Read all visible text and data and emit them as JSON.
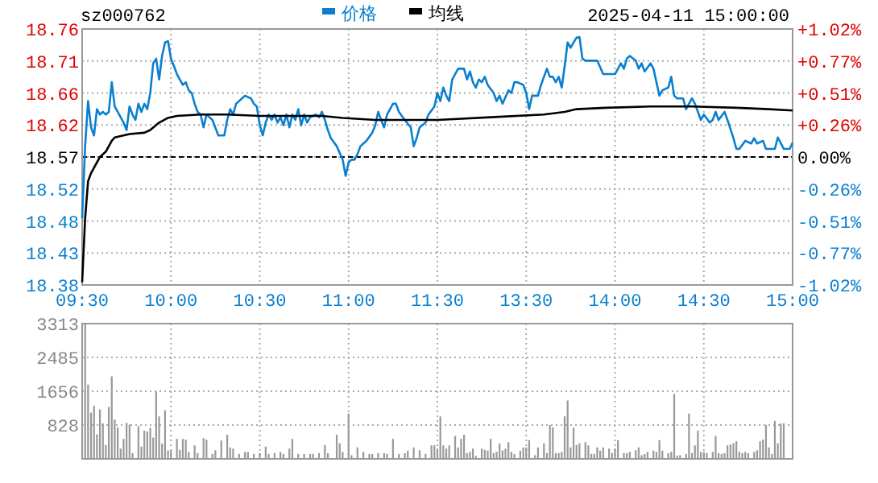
{
  "chart_data": [
    {
      "type": "line",
      "title": "sz000762",
      "annotations": [
        "2025-04-11 15:00:00"
      ],
      "legend": "top",
      "grid": true,
      "categories": [
        "09:30",
        null,
        null,
        null,
        null,
        null,
        null,
        null,
        null,
        null,
        null,
        null,
        null,
        null,
        null,
        null,
        null,
        null,
        null,
        null,
        null,
        null,
        null,
        null,
        null,
        null,
        null,
        null,
        null,
        null,
        "10:00",
        null,
        null,
        null,
        null,
        null,
        null,
        null,
        null,
        null,
        null,
        null,
        null,
        null,
        null,
        null,
        null,
        null,
        null,
        null,
        null,
        null,
        null,
        null,
        null,
        null,
        null,
        null,
        null,
        null,
        "10:30",
        null,
        null,
        null,
        null,
        null,
        null,
        null,
        null,
        null,
        null,
        null,
        null,
        null,
        null,
        null,
        null,
        null,
        null,
        null,
        null,
        null,
        null,
        null,
        null,
        null,
        null,
        null,
        null,
        null,
        "11:00",
        null,
        null,
        null,
        null,
        null,
        null,
        null,
        null,
        null,
        null,
        null,
        null,
        null,
        null,
        null,
        null,
        null,
        null,
        null,
        null,
        null,
        null,
        null,
        null,
        null,
        null,
        null,
        null,
        null,
        "11:30",
        null,
        null,
        null,
        null,
        null,
        null,
        null,
        null,
        null,
        null,
        null,
        null,
        null,
        null,
        null,
        null,
        null,
        null,
        null,
        null,
        null,
        null,
        null,
        null,
        null,
        null,
        null,
        null,
        null,
        "13:30",
        null,
        null,
        null,
        null,
        null,
        null,
        null,
        null,
        null,
        null,
        null,
        null,
        null,
        null,
        null,
        null,
        null,
        null,
        null,
        null,
        null,
        null,
        null,
        null,
        null,
        null,
        null,
        null,
        null,
        "14:00",
        null,
        null,
        null,
        null,
        null,
        null,
        null,
        null,
        null,
        null,
        null,
        null,
        null,
        null,
        null,
        null,
        null,
        null,
        null,
        null,
        null,
        null,
        null,
        null,
        null,
        null,
        null,
        null,
        null,
        "14:30",
        null,
        null,
        null,
        null,
        null,
        null,
        null,
        null,
        null,
        null,
        null,
        null,
        null,
        null,
        null,
        null,
        null,
        null,
        null,
        null,
        null,
        null,
        null,
        null,
        null,
        null,
        null,
        null,
        null,
        "15:00"
      ],
      "ylim": [
        18.38,
        18.76
      ],
      "yticks": [
        {
          "value": 18.38,
          "label": "18.38"
        },
        {
          "value": 18.4275,
          "label": "18.43"
        },
        {
          "value": 18.475,
          "label": "18.48"
        },
        {
          "value": 18.5225,
          "label": "18.52"
        },
        {
          "value": 18.57,
          "label": "18.57"
        },
        {
          "value": 18.6175,
          "label": "18.62"
        },
        {
          "value": 18.665,
          "label": "18.66"
        },
        {
          "value": 18.7125,
          "label": "18.71"
        },
        {
          "value": 18.76,
          "label": "18.76"
        }
      ],
      "y2lim": [
        -1.02,
        1.02
      ],
      "y2ticks": [
        {
          "value": -1.02,
          "label": "-1.02%"
        },
        {
          "value": -0.765,
          "label": "-0.77%"
        },
        {
          "value": -0.51,
          "label": "-0.51%"
        },
        {
          "value": -0.255,
          "label": "-0.26%"
        },
        {
          "value": 0,
          "label": "0.00%"
        },
        {
          "value": 0.255,
          "label": "+0.26%"
        },
        {
          "value": 0.51,
          "label": "+0.51%"
        },
        {
          "value": 0.765,
          "label": "+0.77%"
        },
        {
          "value": 1.02,
          "label": "+1.02%"
        }
      ],
      "ref_lines": [
        {
          "axis": "y",
          "value": 18.57,
          "color": "#000000",
          "line_style": "dashed"
        }
      ],
      "series": [
        {
          "name": "价格",
          "color": "#0a7fd0",
          "values": [
            18.479,
            18.586,
            18.653,
            18.614,
            18.602,
            18.641,
            18.633,
            18.637,
            18.633,
            18.637,
            18.681,
            18.645,
            18.637,
            null,
            18.621,
            18.61,
            18.645,
            18.633,
            18.625,
            18.649,
            18.637,
            18.649,
            18.641,
            18.665,
            18.709,
            18.716,
            18.685,
            18.72,
            18.74,
            18.742,
            18.716,
            18.705,
            18.693,
            18.685,
            18.677,
            18.681,
            18.669,
            18.665,
            18.649,
            18.637,
            18.633,
            18.614,
            18.633,
            null,
            18.625,
            null,
            18.602,
            null,
            18.602,
            18.625,
            18.641,
            18.633,
            18.649,
            null,
            18.657,
            18.661,
            null,
            18.657,
            18.649,
            18.645,
            18.617,
            18.602,
            18.621,
            18.633,
            18.625,
            18.633,
            18.621,
            18.629,
            18.617,
            18.633,
            18.614,
            18.633,
            18.625,
            18.641,
            18.617,
            18.633,
            18.621,
            18.629,
            null,
            18.633,
            18.629,
            18.637,
            18.625,
            18.61,
            18.598,
            null,
            18.586,
            null,
            18.566,
            18.542,
            18.562,
            18.566,
            18.566,
            18.574,
            18.586,
            null,
            18.594,
            null,
            18.606,
            18.617,
            18.637,
            18.625,
            18.614,
            18.633,
            null,
            18.649,
            18.649,
            18.637,
            null,
            18.625,
            null,
            18.614,
            18.586,
            18.598,
            18.614,
            null,
            18.621,
            18.633,
            null,
            18.645,
            18.665,
            18.653,
            18.673,
            18.661,
            18.653,
            18.685,
            null,
            18.701,
            null,
            18.701,
            18.685,
            18.697,
            18.681,
            18.673,
            18.685,
            18.681,
            18.689,
            18.677,
            null,
            18.665,
            18.653,
            18.661,
            18.649,
            null,
            18.669,
            18.665,
            18.681,
            18.681,
            null,
            18.677,
            18.665,
            18.641,
            18.661,
            null,
            18.661,
            18.677,
            null,
            18.701,
            18.689,
            18.689,
            18.681,
            18.689,
            18.673,
            18.705,
            18.74,
            18.732,
            18.74,
            18.747,
            18.748,
            18.716,
            18.713,
            null,
            null,
            null,
            18.713,
            null,
            18.693,
            null,
            null,
            null,
            18.693,
            null,
            18.709,
            18.701,
            18.716,
            18.72,
            null,
            18.713,
            18.701,
            18.709,
            18.697,
            null,
            18.709,
            18.701,
            18.681,
            18.661,
            18.669,
            null,
            18.673,
            18.689,
            18.661,
            18.657,
            null,
            18.657,
            18.641,
            null,
            18.657,
            18.649,
            null,
            18.625,
            18.633,
            null,
            18.621,
            18.625,
            18.637,
            18.625,
            null,
            18.637,
            18.625,
            null,
            18.598,
            18.582,
            18.582,
            null,
            18.594,
            null,
            18.59,
            18.598,
            18.59,
            null,
            18.594,
            18.582,
            null,
            null,
            18.582,
            18.599,
            null,
            18.582,
            null,
            18.582,
            18.591
          ]
        },
        {
          "name": "均线",
          "color": "#000000",
          "values": [
            18.384,
            18.479,
            18.534,
            18.546,
            18.554,
            null,
            18.57,
            null,
            18.578,
            null,
            18.594,
            18.599,
            null,
            null,
            null,
            null,
            18.604,
            null,
            null,
            null,
            null,
            18.606,
            null,
            18.61,
            null,
            null,
            18.621,
            null,
            null,
            18.628,
            null,
            null,
            18.631,
            null,
            null,
            null,
            null,
            null,
            null,
            null,
            18.633,
            null,
            null,
            null,
            null,
            null,
            null,
            null,
            null,
            18.633,
            null,
            null,
            null,
            null,
            null,
            null,
            null,
            null,
            null,
            null,
            18.631,
            null,
            null,
            null,
            null,
            null,
            null,
            null,
            null,
            null,
            null,
            null,
            null,
            null,
            null,
            null,
            null,
            null,
            null,
            null,
            null,
            18.631,
            null,
            null,
            null,
            null,
            null,
            null,
            18.628,
            null,
            null,
            null,
            null,
            null,
            null,
            null,
            null,
            null,
            null,
            18.625,
            null,
            null,
            null,
            null,
            null,
            null,
            null,
            null,
            null,
            null,
            null,
            null,
            null,
            null,
            null,
            null,
            null,
            null,
            null,
            null,
            18.625,
            null,
            null,
            null,
            null,
            null,
            null,
            null,
            null,
            null,
            null,
            null,
            null,
            null,
            null,
            null,
            null,
            null,
            18.629,
            null,
            null,
            null,
            null,
            null,
            null,
            null,
            null,
            null,
            null,
            null,
            null,
            null,
            null,
            null,
            null,
            null,
            18.633,
            null,
            null,
            null,
            null,
            null,
            null,
            18.637,
            null,
            null,
            null,
            18.641,
            null,
            null,
            null,
            null,
            null,
            null,
            null,
            null,
            null,
            18.643,
            null,
            null,
            null,
            null,
            null,
            null,
            null,
            null,
            null,
            null,
            null,
            null,
            null,
            null,
            18.645,
            null,
            null,
            null,
            null,
            null,
            null,
            null,
            null,
            null,
            null,
            null,
            null,
            null,
            18.645,
            null,
            null,
            null,
            null,
            null,
            null,
            null,
            null,
            null,
            null,
            null,
            null,
            null,
            null,
            18.643,
            null,
            null,
            null,
            null,
            null,
            null,
            null,
            null,
            null,
            null,
            18.641,
            null,
            null,
            null,
            null,
            null,
            null,
            null,
            18.639
          ]
        }
      ]
    },
    {
      "type": "bar",
      "color": "#999999",
      "grid": true,
      "tick_labels": "y",
      "categories": [
        null,
        null,
        null,
        null,
        null,
        null,
        null,
        null,
        null,
        null,
        null,
        null,
        null,
        null,
        null,
        null,
        null,
        null,
        null,
        null,
        null,
        null,
        null,
        null,
        null,
        null,
        null,
        null,
        null,
        null,
        null,
        null,
        null,
        null,
        null,
        null,
        null,
        null,
        null,
        null,
        null,
        null,
        null,
        null,
        null,
        null,
        null,
        null,
        null,
        null,
        null,
        null,
        null,
        null,
        null,
        null,
        null,
        null,
        null,
        null,
        null,
        null,
        null,
        null,
        null,
        null,
        null,
        null,
        null,
        null,
        null,
        null,
        null,
        null,
        null,
        null,
        null,
        null,
        null,
        null,
        null,
        null,
        null,
        null,
        null,
        null,
        null,
        null,
        null,
        null,
        null,
        null,
        null,
        null,
        null,
        null,
        null,
        null,
        null,
        null,
        null,
        null,
        null,
        null,
        null,
        null,
        null,
        null,
        null,
        null,
        null,
        null,
        null,
        null,
        null,
        null,
        null,
        null,
        null,
        null,
        null,
        null,
        null,
        null,
        null,
        null,
        null,
        null,
        null,
        null,
        null,
        null,
        null,
        null,
        null,
        null,
        null,
        null,
        null,
        null,
        null,
        null,
        null,
        null,
        null,
        null,
        null,
        null,
        null,
        null,
        null,
        null,
        null,
        null,
        null,
        null,
        null,
        null,
        null,
        null,
        null,
        null,
        null,
        null,
        null,
        null,
        null,
        null,
        null,
        null,
        null,
        null,
        null,
        null,
        null,
        null,
        null,
        null,
        null,
        null,
        null,
        null,
        null,
        null,
        null,
        null,
        null,
        null,
        null,
        null,
        null,
        null,
        null,
        null,
        null,
        null,
        null,
        null,
        null,
        null,
        null,
        null,
        null,
        null,
        null,
        null,
        null,
        null,
        null,
        null,
        null,
        null,
        null,
        null,
        null,
        null,
        null,
        null,
        null,
        null,
        null,
        null,
        null,
        null,
        null,
        null,
        null,
        null,
        null,
        null,
        null,
        null,
        null,
        null,
        null,
        null,
        null,
        null,
        null,
        null,
        null
      ],
      "ylim": [
        0,
        3313
      ],
      "yticks": [
        {
          "value": 0,
          "label": null
        },
        828,
        1656,
        2485,
        3313
      ],
      "values": [
        510,
        3310,
        1820,
        1130,
        1300,
        600,
        1210,
        870,
        340,
        1270,
        2020,
        960,
        770,
        250,
        490,
        880,
        840,
        140,
        null,
        800,
        300,
        690,
        670,
        760,
        520,
        1650,
        1040,
        370,
        1190,
        210,
        210,
        null,
        490,
        220,
        490,
        470,
        170,
        null,
        330,
        140,
        null,
        510,
        470,
        null,
        120,
        210,
        null,
        450,
        null,
        590,
        280,
        250,
        null,
        120,
        null,
        170,
        170,
        null,
        120,
        null,
        140,
        null,
        300,
        120,
        null,
        140,
        null,
        170,
        120,
        null,
        250,
        490,
        null,
        120,
        null,
        120,
        null,
        120,
        120,
        null,
        140,
        null,
        340,
        140,
        null,
        null,
        590,
        380,
        170,
        null,
        1110,
        90,
        null,
        280,
        null,
        170,
        null,
        120,
        120,
        null,
        140,
        null,
        140,
        120,
        null,
        490,
        null,
        120,
        null,
        140,
        200,
        null,
        280,
        null,
        210,
        null,
        120,
        null,
        330,
        330,
        250,
        1040,
        330,
        250,
        330,
        null,
        560,
        280,
        490,
        590,
        140,
        170,
        250,
        70,
        null,
        250,
        220,
        200,
        490,
        140,
        170,
        380,
        210,
        250,
        410,
        170,
        120,
        null,
        200,
        280,
        280,
        460,
        null,
        90,
        280,
        null,
        380,
        140,
        830,
        770,
        140,
        140,
        170,
        1040,
        1430,
        280,
        760,
        340,
        380,
        null,
        410,
        330,
        120,
        120,
        280,
        200,
        280,
        null,
        250,
        140,
        250,
        460,
        null,
        140,
        140,
        170,
        null,
        210,
        280,
        90,
        120,
        170,
        null,
        200,
        170,
        460,
        200,
        null,
        140,
        170,
        1590,
        80,
        90,
        null,
        120,
        1110,
        140,
        330,
        690,
        170,
        170,
        140,
        null,
        170,
        560,
        140,
        120,
        140,
        330,
        350,
        380,
        430,
        170,
        140,
        170,
        140,
        null,
        170,
        210,
        430,
        470,
        830,
        280,
        120,
        930,
        380,
        870,
        870,
        null,
        null,
        null
      ]
    }
  ]
}
